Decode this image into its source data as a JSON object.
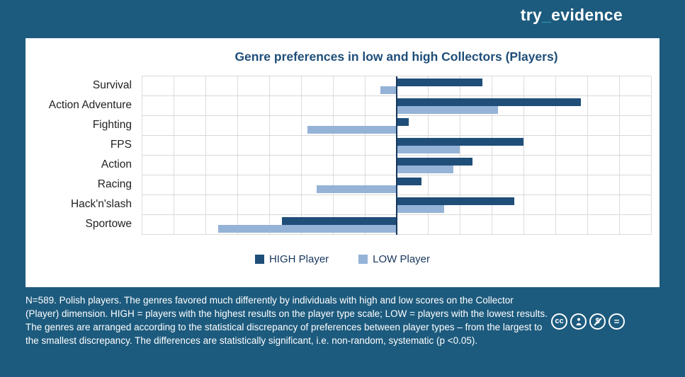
{
  "logo": {
    "prefix": "try",
    "underscore": "_",
    "suffix": "evidence"
  },
  "chart_data": {
    "type": "bar",
    "orientation": "horizontal",
    "title": "Genre preferences in low and high Collectors (Players)",
    "categories": [
      "Survival",
      "Action Adventure",
      "Fighting",
      "FPS",
      "Action",
      "Racing",
      "Hack'n'slash",
      "Sportowe"
    ],
    "series": [
      {
        "name": "HIGH Player",
        "color": "#1F4E79",
        "values": [
          27,
          58,
          4,
          40,
          24,
          8,
          37,
          -36
        ]
      },
      {
        "name": "LOW Player",
        "color": "#95B3D7",
        "values": [
          -5,
          32,
          -28,
          20,
          18,
          -25,
          15,
          -56
        ]
      }
    ],
    "xlim": [
      -80,
      80
    ],
    "gridline_step": 10,
    "axis_note": "no tick labels visible; values estimated from gridlines",
    "grid": true,
    "legend_position": "bottom"
  },
  "footnote": {
    "text": "N=589. Polish players. The genres favored much differently by individuals with high and low scores on the Collector (Player) dimension. HIGH = players with the highest results on the player type scale; LOW = players with the lowest results. The genres are arranged according to the statistical discrepancy of preferences between player types – from the largest to the smallest discrepancy. The differences are statistically significant, i.e. non-random, systematic (p <0.05)."
  },
  "license_icons": [
    {
      "name": "cc-icon",
      "glyph": "cc"
    },
    {
      "name": "attribution-icon",
      "glyph": ""
    },
    {
      "name": "nc-icon",
      "glyph": "$"
    },
    {
      "name": "nd-icon",
      "glyph": "="
    }
  ]
}
